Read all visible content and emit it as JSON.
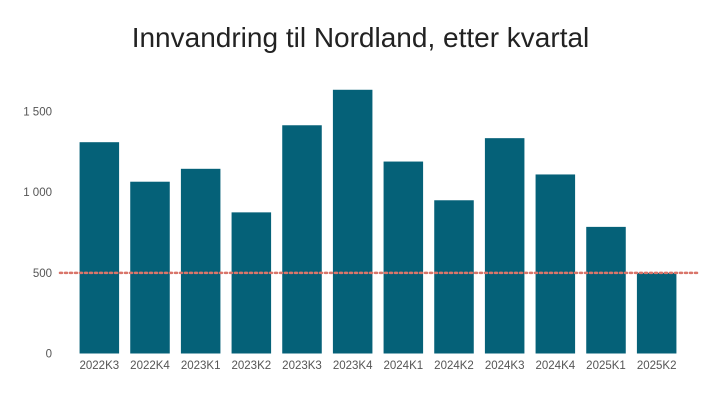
{
  "chart_data": {
    "type": "bar",
    "title": "Innvandring til Nordland, etter kvartal",
    "xlabel": "",
    "ylabel": "",
    "categories": [
      "2022K3",
      "2022K4",
      "2023K1",
      "2023K2",
      "2023K3",
      "2023K4",
      "2024K1",
      "2024K2",
      "2024K3",
      "2024K4",
      "2025K1",
      "2025K2"
    ],
    "values": [
      1310,
      1065,
      1145,
      875,
      1415,
      1635,
      1190,
      950,
      1335,
      1110,
      785,
      500
    ],
    "ylim": [
      0,
      1650
    ],
    "yticks": [
      0,
      500,
      1000,
      1500
    ],
    "ytick_labels": [
      "0",
      "500",
      "1 000",
      "1 500"
    ],
    "reference_line": {
      "value": 500,
      "style": "dotted"
    },
    "grid": false,
    "legend": "none",
    "colors": {
      "bar": "#056178",
      "reference_line": "#d9756a",
      "text": "#555555",
      "title": "#222222"
    }
  }
}
